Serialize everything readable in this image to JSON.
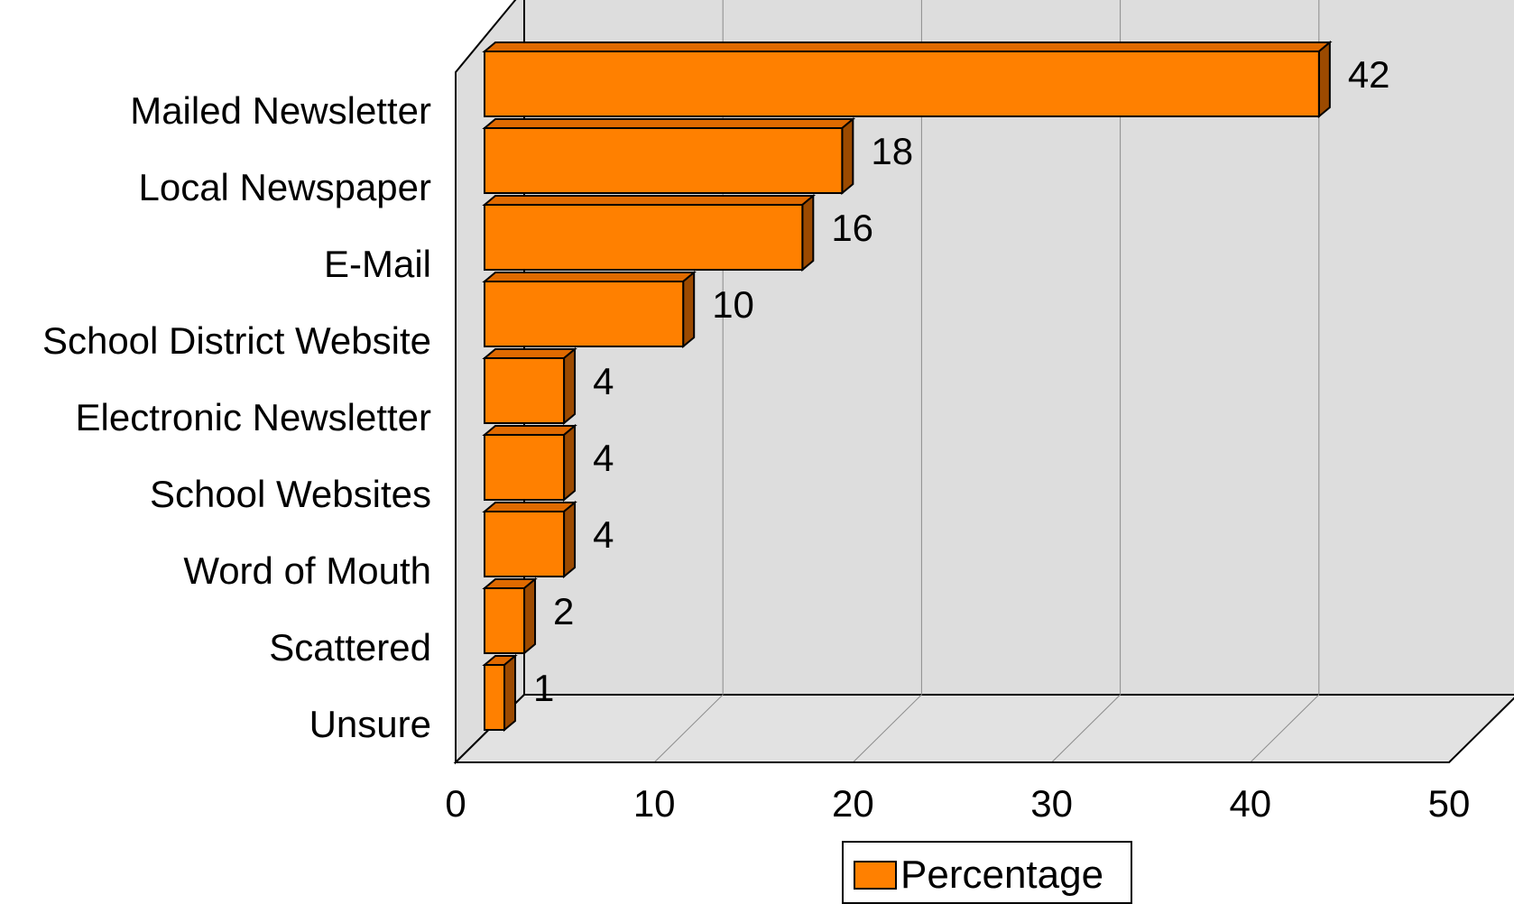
{
  "chart_data": {
    "type": "bar",
    "orientation": "horizontal",
    "three_d": true,
    "categories": [
      "Mailed Newsletter",
      "Local Newspaper",
      "E-Mail",
      "School District Website",
      "Electronic Newsletter",
      "School Websites",
      "Word of Mouth",
      "Scattered",
      "Unsure"
    ],
    "series": [
      {
        "name": "Percentage",
        "values": [
          42,
          18,
          16,
          10,
          4,
          4,
          4,
          2,
          1
        ],
        "color": "#FF8000"
      }
    ],
    "xlim": [
      0,
      50
    ],
    "x_ticks": [
      0,
      10,
      20,
      30,
      40,
      50
    ],
    "grid": true,
    "data_labels": true,
    "legend": "bottom-center"
  },
  "colors": {
    "bar_front": "#FF8000",
    "bar_top": "#E06A00",
    "bar_side": "#9C4A00",
    "wall": "#DDDDDD",
    "floor": "#E2E2E2",
    "gridline": "#8C8C8C"
  }
}
